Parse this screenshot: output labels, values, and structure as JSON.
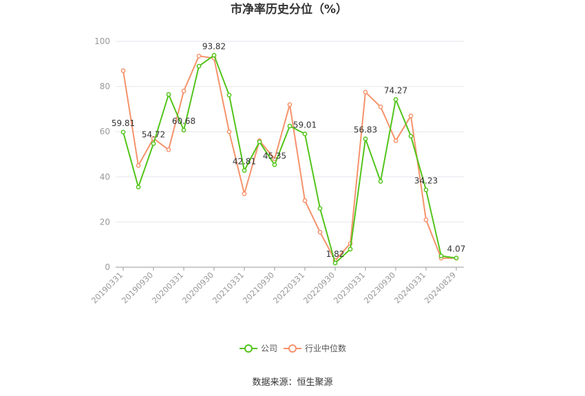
{
  "chart_data": {
    "type": "line",
    "title": "市净率历史分位（%）",
    "xlabel": "",
    "ylabel": "",
    "ylim": [
      0,
      100
    ],
    "yticks": [
      0,
      20,
      40,
      60,
      80,
      100
    ],
    "grid": true,
    "legend_position": "bottom",
    "x": [
      "20190331",
      "20190630",
      "20190930",
      "20191231",
      "20200331",
      "20200630",
      "20200930",
      "20201231",
      "20210331",
      "20210630",
      "20210930",
      "20211231",
      "20220331",
      "20220630",
      "20220930",
      "20221231",
      "20230331",
      "20230630",
      "20230930",
      "20231231",
      "20240331",
      "20240630",
      "20240829"
    ],
    "x_tick_labels": [
      "20190331",
      "20190930",
      "20200331",
      "20200930",
      "20210331",
      "20210930",
      "20220331",
      "20220930",
      "20230331",
      "20230930",
      "20240331",
      "20240829"
    ],
    "series": [
      {
        "name": "公司",
        "color": "#52c41a",
        "values": [
          59.81,
          35.5,
          54.72,
          76.5,
          60.68,
          89.0,
          93.82,
          76.2,
          42.81,
          55.5,
          45.35,
          62.5,
          59.01,
          26.0,
          1.82,
          8.0,
          56.83,
          38.0,
          74.27,
          58.0,
          34.23,
          5.0,
          4.07
        ],
        "labels": {
          "0": "59.81",
          "2": "54.72",
          "4": "60.68",
          "6": "93.82",
          "8": "42.81",
          "10": "45.35",
          "12": "59.01",
          "14": "1.82",
          "16": "56.83",
          "18": "74.27",
          "20": "34.23",
          "22": "4.07"
        }
      },
      {
        "name": "行业中位数",
        "color": "#f5926b",
        "values": [
          87.0,
          45.0,
          57.0,
          52.0,
          78.0,
          93.5,
          92.5,
          60.0,
          32.5,
          56.0,
          48.0,
          72.0,
          29.5,
          15.5,
          3.0,
          10.5,
          77.5,
          71.0,
          56.0,
          67.0,
          21.0,
          4.0,
          4.0
        ]
      }
    ]
  },
  "source_text": "数据来源：恒生聚源"
}
